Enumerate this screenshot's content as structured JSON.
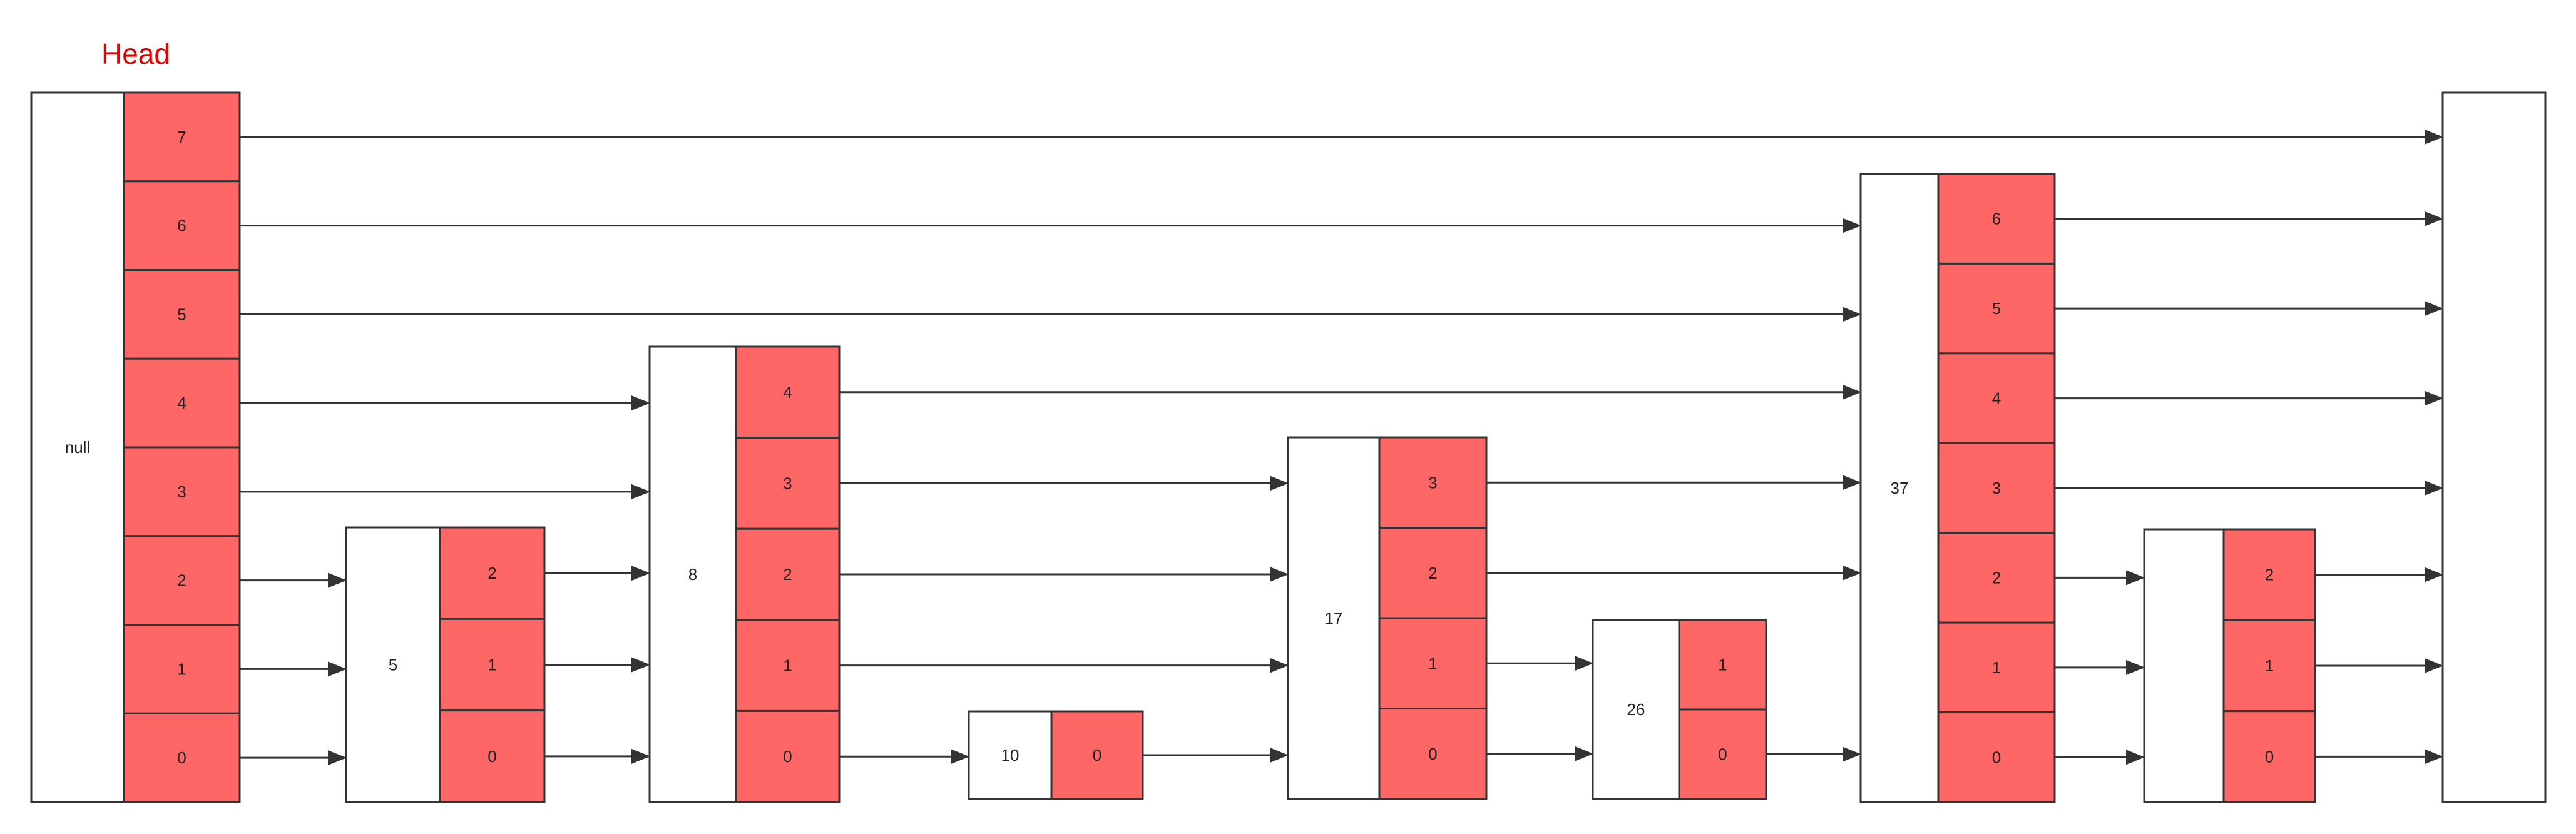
{
  "title": "Head",
  "colors": {
    "title": "#e00000",
    "level_fill": "#ff6666",
    "node_fill": "#ffffff",
    "stroke": "#333333"
  },
  "nodes": [
    {
      "id": "head",
      "key": "null",
      "levels": [
        "7",
        "6",
        "5",
        "4",
        "3",
        "2",
        "1",
        "0"
      ]
    },
    {
      "id": "n5",
      "key": "5",
      "levels": [
        "2",
        "1",
        "0"
      ]
    },
    {
      "id": "n8",
      "key": "8",
      "levels": [
        "4",
        "3",
        "2",
        "1",
        "0"
      ]
    },
    {
      "id": "n10",
      "key": "10",
      "levels": [
        "0"
      ]
    },
    {
      "id": "n17",
      "key": "17",
      "levels": [
        "3",
        "2",
        "1",
        "0"
      ]
    },
    {
      "id": "n26",
      "key": "26",
      "levels": [
        "1",
        "0"
      ]
    },
    {
      "id": "n37",
      "key": "37",
      "levels": [
        "6",
        "5",
        "4",
        "3",
        "2",
        "1",
        "0"
      ]
    },
    {
      "id": "n_last",
      "key": "",
      "levels": [
        "2",
        "1",
        "0"
      ]
    },
    {
      "id": "tail",
      "key": "",
      "levels": []
    }
  ],
  "links": [
    {
      "from": "head",
      "to": "tail",
      "level": 7
    },
    {
      "from": "head",
      "to": "n37",
      "level": 6
    },
    {
      "from": "head",
      "to": "n37",
      "level": 5
    },
    {
      "from": "head",
      "to": "n8",
      "level": 4
    },
    {
      "from": "head",
      "to": "n8",
      "level": 3
    },
    {
      "from": "head",
      "to": "n5",
      "level": 2
    },
    {
      "from": "head",
      "to": "n5",
      "level": 1
    },
    {
      "from": "head",
      "to": "n5",
      "level": 0
    },
    {
      "from": "n5",
      "to": "n8",
      "level": 2
    },
    {
      "from": "n5",
      "to": "n8",
      "level": 1
    },
    {
      "from": "n5",
      "to": "n8",
      "level": 0
    },
    {
      "from": "n8",
      "to": "n37",
      "level": 4
    },
    {
      "from": "n8",
      "to": "n17",
      "level": 3
    },
    {
      "from": "n8",
      "to": "n17",
      "level": 2
    },
    {
      "from": "n8",
      "to": "n17",
      "level": 1
    },
    {
      "from": "n8",
      "to": "n10",
      "level": 0
    },
    {
      "from": "n10",
      "to": "n17",
      "level": 0
    },
    {
      "from": "n17",
      "to": "n37",
      "level": 3
    },
    {
      "from": "n17",
      "to": "n37",
      "level": 2
    },
    {
      "from": "n17",
      "to": "n26",
      "level": 1
    },
    {
      "from": "n17",
      "to": "n26",
      "level": 0
    },
    {
      "from": "n26",
      "to": "n37",
      "level": 0
    },
    {
      "from": "n37",
      "to": "tail",
      "level": 6
    },
    {
      "from": "n37",
      "to": "tail",
      "level": 5
    },
    {
      "from": "n37",
      "to": "tail",
      "level": 4
    },
    {
      "from": "n37",
      "to": "tail",
      "level": 3
    },
    {
      "from": "n37",
      "to": "n_last",
      "level": 2
    },
    {
      "from": "n37",
      "to": "n_last",
      "level": 1
    },
    {
      "from": "n37",
      "to": "n_last",
      "level": 0
    },
    {
      "from": "n_last",
      "to": "tail",
      "level": 2
    },
    {
      "from": "n_last",
      "to": "tail",
      "level": 1
    },
    {
      "from": "n_last",
      "to": "tail",
      "level": 0
    }
  ]
}
